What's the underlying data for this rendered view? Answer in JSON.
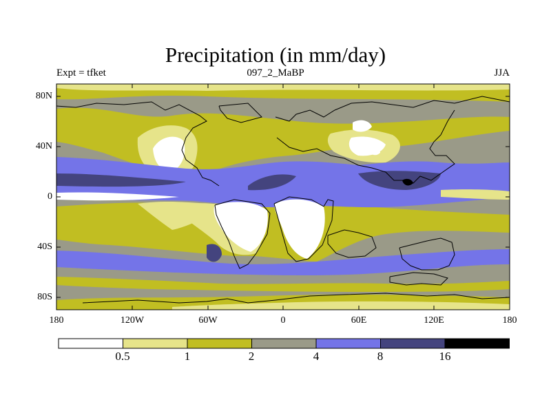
{
  "title": "Precipitation (in mm/day)",
  "subtitle_left": "Expt = tfket",
  "subtitle_center": "097_2_MaBP",
  "subtitle_right": "JJA",
  "map": {
    "lat_ticks": [
      {
        "value": 80,
        "label": "80N"
      },
      {
        "value": 40,
        "label": "40N"
      },
      {
        "value": 0,
        "label": "0"
      },
      {
        "value": -40,
        "label": "40S"
      },
      {
        "value": -80,
        "label": "80S"
      }
    ],
    "lon_ticks": [
      {
        "value": -180,
        "label": "180"
      },
      {
        "value": -120,
        "label": "120W"
      },
      {
        "value": -60,
        "label": "60W"
      },
      {
        "value": 0,
        "label": "0"
      },
      {
        "value": 60,
        "label": "60E"
      },
      {
        "value": 120,
        "label": "120E"
      },
      {
        "value": 180,
        "label": "180"
      }
    ],
    "lon_range": [
      -180,
      180
    ],
    "lat_range": [
      -90,
      90
    ]
  },
  "colorbar": {
    "levels": [
      "0.5",
      "1",
      "2",
      "4",
      "8",
      "16"
    ],
    "colors": [
      "#ffffff",
      "#e6e48a",
      "#c1be22",
      "#9a9a88",
      "#7474e8",
      "#44447e",
      "#000000"
    ]
  }
}
